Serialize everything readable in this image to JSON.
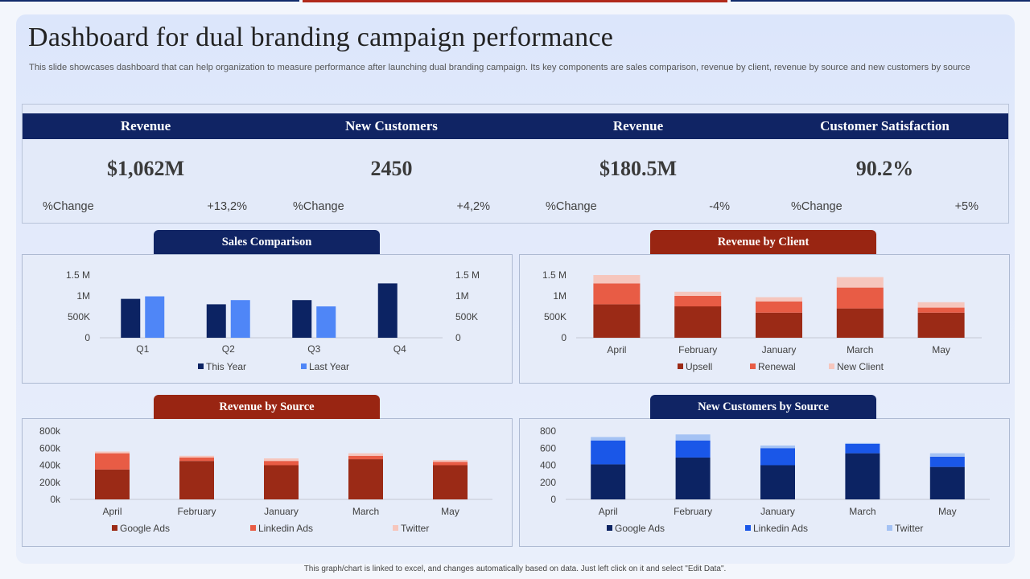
{
  "title": "Dashboard for dual branding campaign performance",
  "subtitle": "This slide showcases dashboard that can help organization to measure performance after launching dual branding campaign. Its key components are sales comparison, revenue by client, revenue by source and new customers by source",
  "kpis": [
    {
      "label": "Revenue",
      "value": "$1,062M",
      "change_label": "%Change",
      "change": "+13,2%"
    },
    {
      "label": "New Customers",
      "value": "2450",
      "change_label": "%Change",
      "change": "+4,2%"
    },
    {
      "label": "Revenue",
      "value": "$180.5M",
      "change_label": "%Change",
      "change": "-4%"
    },
    {
      "label": "Customer Satisfaction",
      "value": "90.2%",
      "change_label": "%Change",
      "change": "+5%"
    }
  ],
  "colors": {
    "navy": "#0c2363",
    "blue": "#4f86f7",
    "upsell": "#9b2a16",
    "renewal": "#e85c45",
    "newclient": "#f6c6bd",
    "google_blue": "#0c2363",
    "linkedin_blue": "#1a57e8",
    "twitter_blue": "#a4c2f4",
    "twitter_red": "#f6c6bd"
  },
  "footer": "This graph/chart is linked to excel, and changes automatically based on data. Just left click on it and select \"Edit Data\".",
  "chart_data": [
    {
      "id": "sales",
      "title": "Sales Comparison",
      "type": "bar",
      "categories": [
        "Q1",
        "Q2",
        "Q3",
        "Q4"
      ],
      "series": [
        {
          "name": "This Year",
          "values": [
            930000,
            800000,
            900000,
            1300000
          ],
          "color": "#0c2363"
        },
        {
          "name": "Last Year",
          "values": [
            990000,
            900000,
            750000,
            0
          ],
          "color": "#4f86f7"
        }
      ],
      "ylim": [
        0,
        1500000
      ],
      "yticks": [
        {
          "v": 0,
          "label": "0"
        },
        {
          "v": 500000,
          "label": "500K"
        },
        {
          "v": 1000000,
          "label": "1M"
        },
        {
          "v": 1500000,
          "label": "1.5 M"
        }
      ],
      "secondary_axis": true,
      "stacked": false
    },
    {
      "id": "client",
      "title": "Revenue by Client",
      "type": "bar",
      "categories": [
        "April",
        "February",
        "January",
        "March",
        "May"
      ],
      "series": [
        {
          "name": "Upsell",
          "values": [
            800000,
            750000,
            600000,
            700000,
            600000
          ],
          "color": "#9b2a16"
        },
        {
          "name": "Renewal",
          "values": [
            500000,
            250000,
            270000,
            500000,
            120000
          ],
          "color": "#e85c45"
        },
        {
          "name": "New Client",
          "values": [
            200000,
            100000,
            100000,
            250000,
            130000
          ],
          "color": "#f6c6bd"
        }
      ],
      "ylim": [
        0,
        1500000
      ],
      "yticks": [
        {
          "v": 0,
          "label": "0"
        },
        {
          "v": 500000,
          "label": "500K"
        },
        {
          "v": 1000000,
          "label": "1M"
        },
        {
          "v": 1500000,
          "label": "1.5 M"
        }
      ],
      "stacked": true
    },
    {
      "id": "source",
      "title": "Revenue by Source",
      "type": "bar",
      "categories": [
        "April",
        "February",
        "January",
        "March",
        "May"
      ],
      "series": [
        {
          "name": "Google Ads",
          "values": [
            350000,
            450000,
            400000,
            470000,
            400000
          ],
          "color": "#9b2a16"
        },
        {
          "name": "Linkedin Ads",
          "values": [
            190000,
            40000,
            50000,
            40000,
            40000
          ],
          "color": "#e85c45"
        },
        {
          "name": "Twitter",
          "values": [
            20000,
            20000,
            30000,
            30000,
            20000
          ],
          "color": "#f6c6bd"
        }
      ],
      "ylim": [
        0,
        800000
      ],
      "yticks": [
        {
          "v": 0,
          "label": "0k"
        },
        {
          "v": 200000,
          "label": "200k"
        },
        {
          "v": 400000,
          "label": "400k"
        },
        {
          "v": 600000,
          "label": "600k"
        },
        {
          "v": 800000,
          "label": "800k"
        }
      ],
      "stacked": true
    },
    {
      "id": "newcust",
      "title": "New Customers  by Source",
      "type": "bar",
      "categories": [
        "April",
        "February",
        "January",
        "March",
        "May"
      ],
      "series": [
        {
          "name": "Google Ads",
          "values": [
            410,
            490,
            400,
            540,
            380
          ],
          "color": "#0c2363"
        },
        {
          "name": "Linkedin Ads",
          "values": [
            280,
            200,
            200,
            110,
            120
          ],
          "color": "#1a57e8"
        },
        {
          "name": "Twitter",
          "values": [
            40,
            70,
            30,
            10,
            40
          ],
          "color": "#a4c2f4"
        }
      ],
      "ylim": [
        0,
        800
      ],
      "yticks": [
        {
          "v": 0,
          "label": "0"
        },
        {
          "v": 200,
          "label": "200"
        },
        {
          "v": 400,
          "label": "400"
        },
        {
          "v": 600,
          "label": "600"
        },
        {
          "v": 800,
          "label": "800"
        }
      ],
      "stacked": true
    }
  ]
}
